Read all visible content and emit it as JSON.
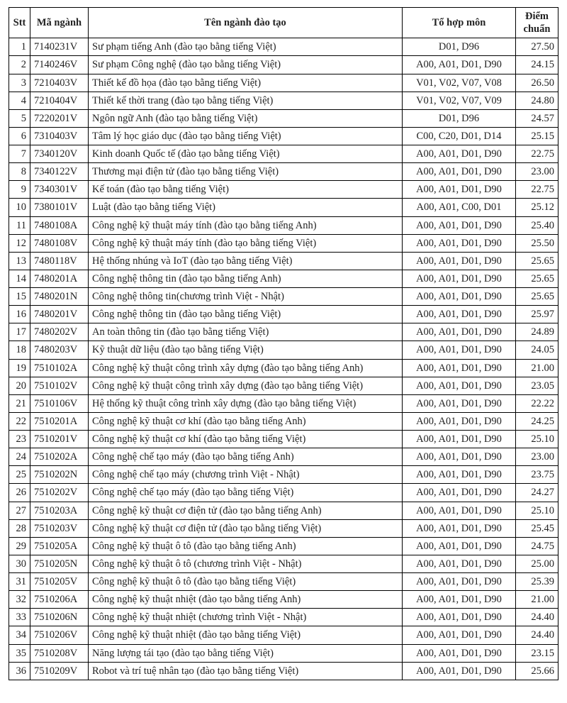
{
  "table": {
    "headers": {
      "stt": "Stt",
      "code": "Mã ngành",
      "name": "Tên ngành đào tạo",
      "combo": "Tổ hợp môn",
      "score": "Điểm chuẩn"
    },
    "rows": [
      {
        "stt": "1",
        "code": "7140231V",
        "name": "Sư phạm tiếng Anh (đào tạo bằng tiếng Việt)",
        "combo": "D01, D96",
        "score": "27.50"
      },
      {
        "stt": "2",
        "code": "7140246V",
        "name": "Sư phạm Công nghệ (đào tạo bằng tiếng Việt)",
        "combo": "A00, A01, D01, D90",
        "score": "24.15"
      },
      {
        "stt": "3",
        "code": "7210403V",
        "name": "Thiết kế đồ họa (đào tạo bằng tiếng Việt)",
        "combo": "V01, V02, V07, V08",
        "score": "26.50"
      },
      {
        "stt": "4",
        "code": "7210404V",
        "name": "Thiết kế thời trang (đào tạo bằng tiếng Việt)",
        "combo": "V01, V02, V07, V09",
        "score": "24.80"
      },
      {
        "stt": "5",
        "code": "7220201V",
        "name": "Ngôn ngữ Anh (đào tạo bằng tiếng Việt)",
        "combo": "D01, D96",
        "score": "24.57"
      },
      {
        "stt": "6",
        "code": "7310403V",
        "name": "Tâm lý học giáo dục (đào tạo bằng tiếng Việt)",
        "combo": "C00, C20, D01, D14",
        "score": "25.15"
      },
      {
        "stt": "7",
        "code": "7340120V",
        "name": "Kinh doanh Quốc tế  (đào tạo bằng tiếng Việt)",
        "combo": "A00, A01, D01, D90",
        "score": "22.75"
      },
      {
        "stt": "8",
        "code": "7340122V",
        "name": "Thương mại điện tử (đào tạo bằng tiếng Việt)",
        "combo": "A00, A01, D01, D90",
        "score": "23.00"
      },
      {
        "stt": "9",
        "code": "7340301V",
        "name": "Kế toán (đào tạo bằng tiếng Việt)",
        "combo": "A00, A01, D01, D90",
        "score": "22.75"
      },
      {
        "stt": "10",
        "code": "7380101V",
        "name": "Luật (đào tạo bằng tiếng Việt)",
        "combo": "A00, A01, C00, D01",
        "score": "25.12"
      },
      {
        "stt": "11",
        "code": "7480108A",
        "name": "Công nghệ kỹ thuật máy tính (đào tạo bằng tiếng Anh)",
        "combo": "A00, A01, D01, D90",
        "score": "25.40"
      },
      {
        "stt": "12",
        "code": "7480108V",
        "name": "Công nghệ kỹ thuật máy tính (đào tạo bằng tiếng Việt)",
        "combo": "A00, A01, D01, D90",
        "score": "25.50"
      },
      {
        "stt": "13",
        "code": "7480118V",
        "name": "Hệ thống nhúng và IoT (đào tạo bằng tiếng Việt)",
        "combo": "A00, A01, D01, D90",
        "score": "25.65"
      },
      {
        "stt": "14",
        "code": "7480201A",
        "name": "Công nghệ thông tin (đào tạo bằng tiếng Anh)",
        "combo": "A00, A01, D01, D90",
        "score": "25.65"
      },
      {
        "stt": "15",
        "code": "7480201N",
        "name": "Công nghệ thông tin(chương trình Việt - Nhật)",
        "combo": "A00, A01, D01, D90",
        "score": "25.65"
      },
      {
        "stt": "16",
        "code": "7480201V",
        "name": "Công nghệ thông tin (đào tạo bằng tiếng Việt)",
        "combo": "A00, A01, D01, D90",
        "score": "25.97"
      },
      {
        "stt": "17",
        "code": "7480202V",
        "name": "An toàn thông tin (đào tạo bằng tiếng Việt)",
        "combo": "A00, A01, D01, D90",
        "score": "24.89"
      },
      {
        "stt": "18",
        "code": "7480203V",
        "name": "Kỹ thuật dữ liệu (đào tạo bằng tiếng Việt)",
        "combo": "A00, A01, D01, D90",
        "score": "24.05"
      },
      {
        "stt": "19",
        "code": "7510102A",
        "name": "Công nghệ kỹ thuật công trình xây dựng (đào tạo bằng tiếng Anh)",
        "combo": "A00, A01, D01, D90",
        "score": "21.00"
      },
      {
        "stt": "20",
        "code": "7510102V",
        "name": "Công nghệ kỹ thuật công trình xây dựng (đào tạo bằng tiếng Việt)",
        "combo": "A00, A01, D01, D90",
        "score": "23.05"
      },
      {
        "stt": "21",
        "code": "7510106V",
        "name": "Hệ thống kỹ thuật công trình xây dựng (đào tạo bằng tiếng Việt)",
        "combo": "A00, A01, D01, D90",
        "score": "22.22"
      },
      {
        "stt": "22",
        "code": "7510201A",
        "name": "Công nghệ kỹ thuật cơ khí  (đào tạo bằng tiếng Anh)",
        "combo": "A00, A01, D01, D90",
        "score": "24.25"
      },
      {
        "stt": "23",
        "code": "7510201V",
        "name": "Công nghệ kỹ thuật cơ khí (đào tạo bằng tiếng Việt)",
        "combo": "A00, A01, D01, D90",
        "score": "25.10"
      },
      {
        "stt": "24",
        "code": "7510202A",
        "name": "Công nghệ chế tạo máy  (đào tạo bằng tiếng Anh)",
        "combo": "A00, A01, D01, D90",
        "score": "23.00"
      },
      {
        "stt": "25",
        "code": "7510202N",
        "name": "Công nghệ chế tạo máy (chương trình Việt - Nhật)",
        "combo": "A00, A01, D01, D90",
        "score": "23.75"
      },
      {
        "stt": "26",
        "code": "7510202V",
        "name": "Công nghệ chế tạo máy (đào tạo bằng tiếng Việt)",
        "combo": "A00, A01, D01, D90",
        "score": "24.27"
      },
      {
        "stt": "27",
        "code": "7510203A",
        "name": "Công nghệ kỹ thuật cơ điện tử (đào tạo bằng tiếng Anh)",
        "combo": "A00, A01, D01, D90",
        "score": "25.10"
      },
      {
        "stt": "28",
        "code": "7510203V",
        "name": "Công nghệ kỹ thuật cơ điện tử (đào tạo bằng tiếng Việt)",
        "combo": "A00, A01, D01, D90",
        "score": "25.45"
      },
      {
        "stt": "29",
        "code": "7510205A",
        "name": "Công nghệ kỹ thuật ô tô (đào tạo bằng tiếng Anh)",
        "combo": "A00, A01, D01, D90",
        "score": "24.75"
      },
      {
        "stt": "30",
        "code": "7510205N",
        "name": "Công nghệ kỹ thuật ô tô (chương trình Việt - Nhật)",
        "combo": "A00, A01, D01, D90",
        "score": "25.00"
      },
      {
        "stt": "31",
        "code": "7510205V",
        "name": "Công nghệ kỹ thuật ô tô (đào tạo bằng tiếng Việt)",
        "combo": "A00, A01, D01, D90",
        "score": "25.39"
      },
      {
        "stt": "32",
        "code": "7510206A",
        "name": "Công nghệ  kỹ thuật nhiệt  (đào tạo bằng tiếng Anh)",
        "combo": "A00, A01, D01, D90",
        "score": "21.00"
      },
      {
        "stt": "33",
        "code": "7510206N",
        "name": "Công nghệ kỹ thuật nhiệt (chương trình Việt - Nhật)",
        "combo": "A00, A01, D01, D90",
        "score": "24.40"
      },
      {
        "stt": "34",
        "code": "7510206V",
        "name": "Công nghệ kỹ thuật nhiệt (đào tạo bằng tiếng Việt)",
        "combo": "A00, A01, D01, D90",
        "score": "24.40"
      },
      {
        "stt": "35",
        "code": "7510208V",
        "name": "Năng lượng tái tạo (đào tạo bằng tiếng Việt)",
        "combo": "A00, A01, D01, D90",
        "score": "23.15"
      },
      {
        "stt": "36",
        "code": "7510209V",
        "name": "Robot và trí tuệ nhân tạo  (đào tạo bằng tiếng Việt)",
        "combo": "A00, A01, D01, D90",
        "score": "25.66"
      }
    ]
  }
}
